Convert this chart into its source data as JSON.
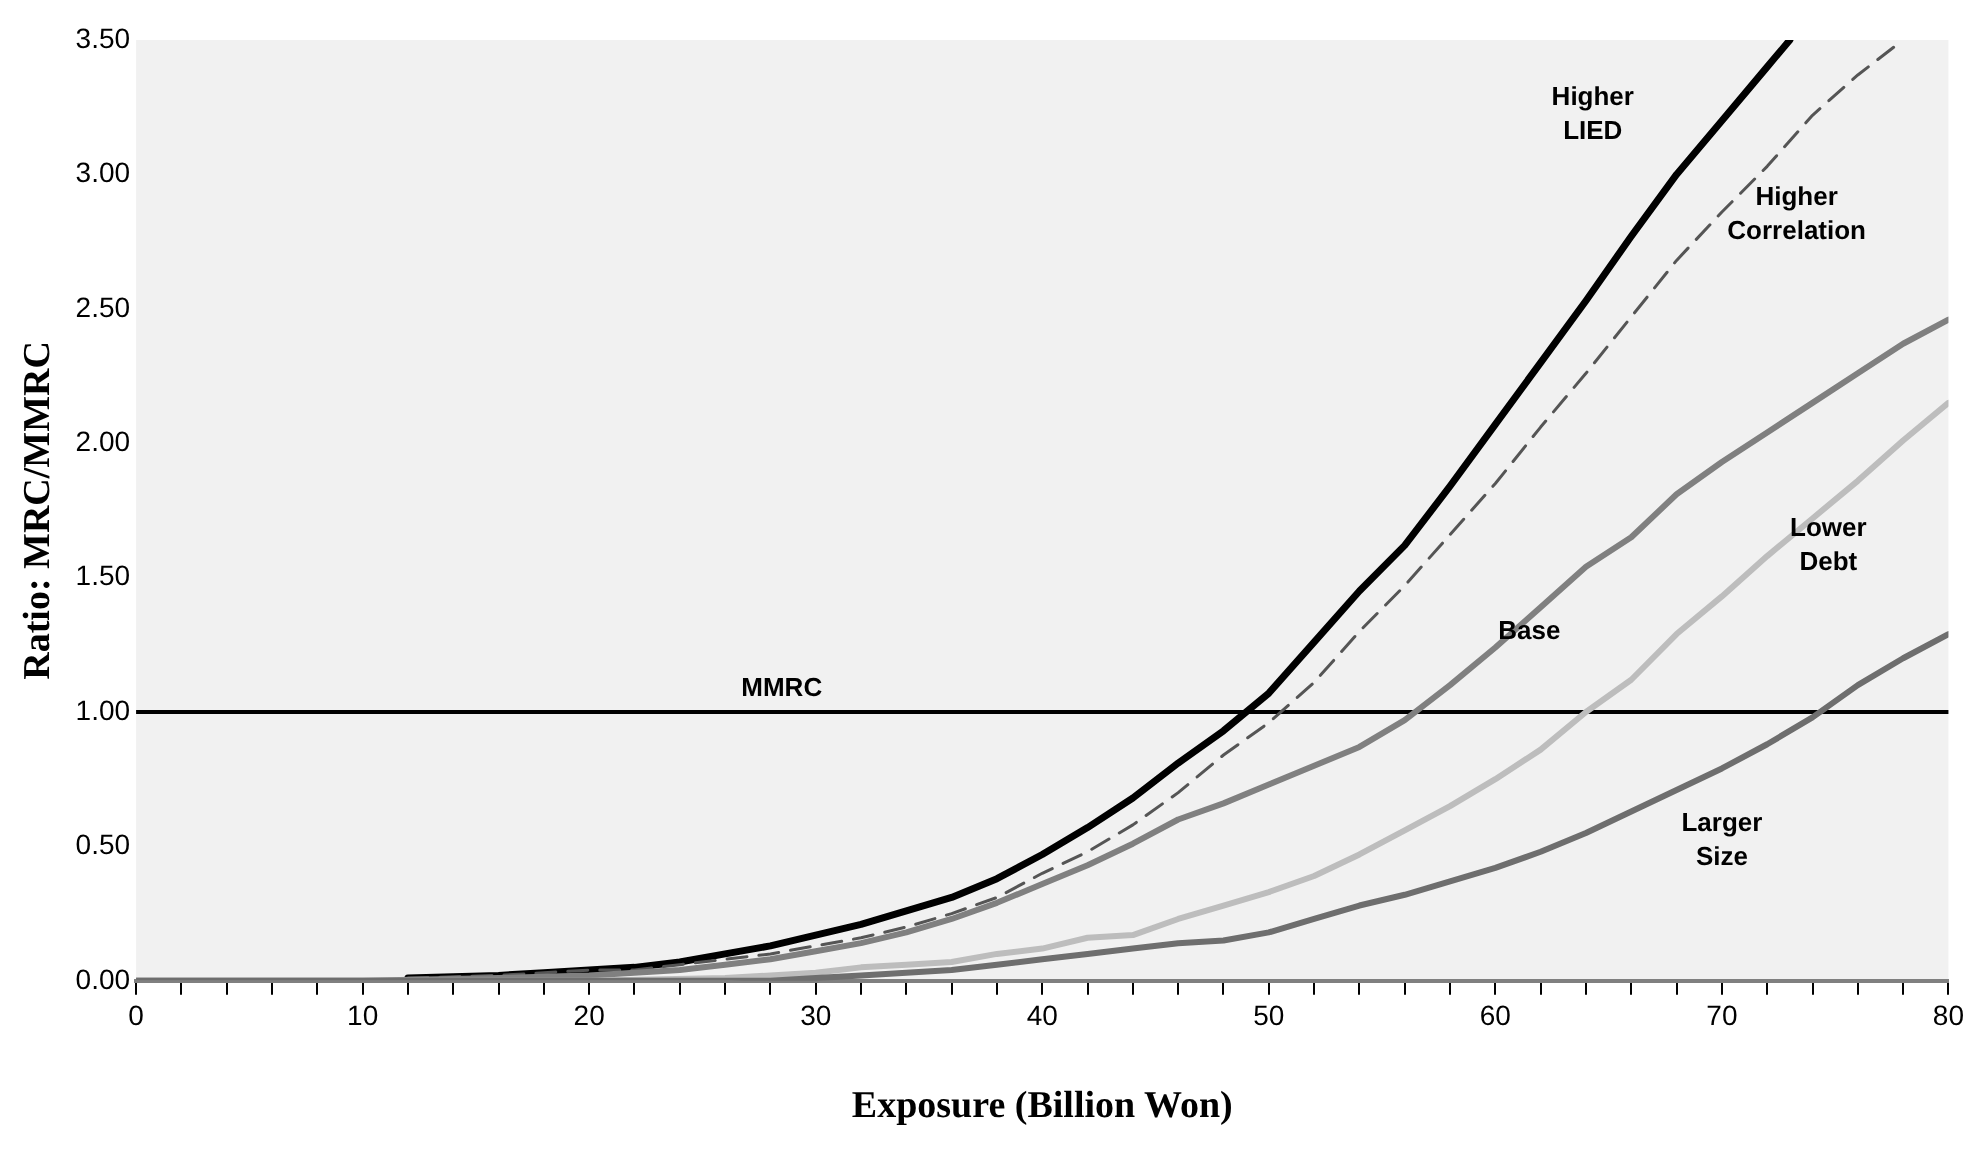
{
  "chart_data": {
    "type": "line",
    "xlabel": "Exposure (Billion Won)",
    "ylabel": "Ratio: MRC/MMRC",
    "xlim": [
      0,
      80
    ],
    "xticks": [
      0,
      {
        "value": 2,
        "label": null
      },
      {
        "value": 4,
        "label": null
      },
      {
        "value": 6,
        "label": null
      },
      {
        "value": 8,
        "label": null
      },
      10,
      {
        "value": 12,
        "label": null
      },
      {
        "value": 14,
        "label": null
      },
      {
        "value": 16,
        "label": null
      },
      {
        "value": 18,
        "label": null
      },
      20,
      {
        "value": 22,
        "label": null
      },
      {
        "value": 24,
        "label": null
      },
      {
        "value": 26,
        "label": null
      },
      {
        "value": 28,
        "label": null
      },
      30,
      {
        "value": 32,
        "label": null
      },
      {
        "value": 34,
        "label": null
      },
      {
        "value": 36,
        "label": null
      },
      {
        "value": 38,
        "label": null
      },
      40,
      {
        "value": 42,
        "label": null
      },
      {
        "value": 44,
        "label": null
      },
      {
        "value": 46,
        "label": null
      },
      {
        "value": 48,
        "label": null
      },
      50,
      {
        "value": 52,
        "label": null
      },
      {
        "value": 54,
        "label": null
      },
      {
        "value": 56,
        "label": null
      },
      {
        "value": 58,
        "label": null
      },
      60,
      {
        "value": 62,
        "label": null
      },
      {
        "value": 64,
        "label": null
      },
      {
        "value": 66,
        "label": null
      },
      {
        "value": 68,
        "label": null
      },
      70,
      {
        "value": 72,
        "label": null
      },
      {
        "value": 74,
        "label": null
      },
      {
        "value": 76,
        "label": null
      },
      {
        "value": 78,
        "label": null
      },
      80
    ],
    "ylim": [
      0,
      3.5
    ],
    "yticks": [
      {
        "value": 0,
        "label": "0.00"
      },
      {
        "value": 0.5,
        "label": "0.50"
      },
      {
        "value": 1,
        "label": "1.00"
      },
      {
        "value": 1.5,
        "label": "1.50"
      },
      {
        "value": 2,
        "label": "2.00"
      },
      {
        "value": 2.5,
        "label": "2.50"
      },
      {
        "value": 3,
        "label": "3.00"
      },
      {
        "value": 3.5,
        "label": "3.50"
      }
    ],
    "grid": false,
    "legend": false,
    "marker": "none",
    "ref_lines": [
      {
        "axis": "y",
        "value": 1,
        "label": "MMRC",
        "color": "#000000"
      }
    ],
    "series": [
      {
        "name": "Higher LIED",
        "color": "#000000",
        "line_style": "solid",
        "x": [
          12,
          14,
          16,
          18,
          20,
          22,
          24,
          26,
          28,
          30,
          32,
          34,
          36,
          38,
          40,
          42,
          44,
          46,
          48,
          50,
          52,
          54,
          56,
          58,
          60,
          62,
          64,
          66,
          68,
          70,
          72,
          73
        ],
        "values": [
          0.01,
          0.015,
          0.02,
          0.03,
          0.04,
          0.05,
          0.07,
          0.1,
          0.13,
          0.17,
          0.21,
          0.26,
          0.31,
          0.38,
          0.47,
          0.57,
          0.68,
          0.81,
          0.93,
          1.07,
          1.26,
          1.45,
          1.62,
          1.84,
          2.07,
          2.3,
          2.53,
          2.77,
          3.0,
          3.2,
          3.4,
          3.5
        ]
      },
      {
        "name": "Higher Correlation",
        "color": "#555555",
        "line_style": "dashed",
        "x": [
          12,
          14,
          16,
          18,
          20,
          22,
          24,
          26,
          28,
          30,
          32,
          34,
          36,
          38,
          40,
          42,
          44,
          46,
          48,
          50,
          52,
          54,
          56,
          58,
          60,
          62,
          64,
          66,
          68,
          70,
          72,
          74,
          76,
          78
        ],
        "values": [
          0.01,
          0.015,
          0.02,
          0.03,
          0.04,
          0.04,
          0.06,
          0.08,
          0.1,
          0.13,
          0.16,
          0.2,
          0.25,
          0.31,
          0.4,
          0.48,
          0.58,
          0.7,
          0.84,
          0.96,
          1.11,
          1.3,
          1.47,
          1.66,
          1.85,
          2.06,
          2.26,
          2.47,
          2.68,
          2.86,
          3.03,
          3.22,
          3.37,
          3.5
        ]
      },
      {
        "name": "Base",
        "color": "#808080",
        "line_style": "solid",
        "x": [
          0,
          10,
          16,
          18,
          20,
          22,
          24,
          26,
          28,
          30,
          32,
          34,
          36,
          38,
          40,
          42,
          44,
          46,
          48,
          50,
          52,
          54,
          56,
          58,
          60,
          62,
          64,
          66,
          68,
          70,
          72,
          74,
          76,
          78,
          80
        ],
        "values": [
          0,
          0,
          0.01,
          0.015,
          0.02,
          0.03,
          0.04,
          0.06,
          0.08,
          0.11,
          0.14,
          0.18,
          0.23,
          0.29,
          0.36,
          0.43,
          0.51,
          0.6,
          0.66,
          0.73,
          0.8,
          0.87,
          0.97,
          1.1,
          1.24,
          1.39,
          1.54,
          1.65,
          1.81,
          1.93,
          2.04,
          2.15,
          2.26,
          2.37,
          2.46
        ]
      },
      {
        "name": "Lower Debt",
        "color": "#bdbdbd",
        "line_style": "solid",
        "x": [
          0,
          10,
          20,
          26,
          28,
          30,
          32,
          34,
          36,
          38,
          40,
          42,
          44,
          46,
          48,
          50,
          52,
          54,
          56,
          58,
          60,
          62,
          64,
          66,
          68,
          70,
          72,
          74,
          76,
          78,
          80
        ],
        "values": [
          0,
          0,
          0,
          0.01,
          0.02,
          0.03,
          0.05,
          0.06,
          0.07,
          0.1,
          0.12,
          0.16,
          0.17,
          0.23,
          0.28,
          0.33,
          0.39,
          0.47,
          0.56,
          0.65,
          0.75,
          0.86,
          1.0,
          1.12,
          1.29,
          1.43,
          1.58,
          1.72,
          1.86,
          2.01,
          2.15
        ]
      },
      {
        "name": "Larger Size",
        "color": "#6e6e6e",
        "line_style": "solid",
        "x": [
          0,
          10,
          20,
          28,
          30,
          32,
          34,
          36,
          38,
          40,
          42,
          44,
          46,
          48,
          50,
          52,
          54,
          56,
          58,
          60,
          62,
          64,
          66,
          68,
          70,
          72,
          74,
          76,
          78,
          80
        ],
        "values": [
          0,
          0,
          0,
          0,
          0.01,
          0.02,
          0.03,
          0.04,
          0.06,
          0.08,
          0.1,
          0.12,
          0.14,
          0.15,
          0.18,
          0.23,
          0.28,
          0.32,
          0.37,
          0.42,
          0.48,
          0.55,
          0.63,
          0.71,
          0.79,
          0.88,
          0.98,
          1.1,
          1.2,
          1.29
        ]
      }
    ]
  }
}
